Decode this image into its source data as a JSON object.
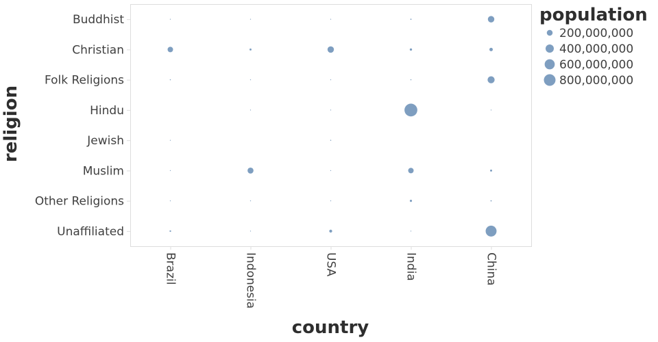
{
  "chart_data": {
    "type": "scatter",
    "mark": "bubble",
    "xlabel": "country",
    "ylabel": "religion",
    "x_categories": [
      "Brazil",
      "Indonesia",
      "USA",
      "India",
      "China"
    ],
    "y_categories": [
      "Buddhist",
      "Christian",
      "Folk Religions",
      "Hindu",
      "Jewish",
      "Muslim",
      "Other Religions",
      "Unaffiliated"
    ],
    "grid": false,
    "legend_position": "top-right",
    "size_legend": {
      "title": "population",
      "values": [
        200000000,
        400000000,
        600000000,
        800000000
      ],
      "labels": [
        "200,000,000",
        "400,000,000",
        "600,000,000",
        "800,000,000"
      ],
      "max_value": 800000000,
      "max_radius_px": 8.5
    },
    "colors": {
      "mark": "#4c78a8",
      "mark_opacity": 0.72,
      "axis_border": "#dddddd",
      "tick_label": "#3f3f3f",
      "title": "#2e2e2e"
    },
    "points": [
      {
        "x": "Brazil",
        "y": "Buddhist",
        "population": 250000
      },
      {
        "x": "Brazil",
        "y": "Christian",
        "population": 175770000
      },
      {
        "x": "Brazil",
        "y": "Folk Religions",
        "population": 5540000
      },
      {
        "x": "Brazil",
        "y": "Jewish",
        "population": 110000
      },
      {
        "x": "Brazil",
        "y": "Muslim",
        "population": 40000
      },
      {
        "x": "Brazil",
        "y": "Other Religions",
        "population": 300000
      },
      {
        "x": "Brazil",
        "y": "Unaffiliated",
        "population": 15410000
      },
      {
        "x": "Indonesia",
        "y": "Buddhist",
        "population": 1720000
      },
      {
        "x": "Indonesia",
        "y": "Christian",
        "population": 23660000
      },
      {
        "x": "Indonesia",
        "y": "Folk Religions",
        "population": 750000
      },
      {
        "x": "Indonesia",
        "y": "Hindu",
        "population": 4050000
      },
      {
        "x": "Indonesia",
        "y": "Muslim",
        "population": 209120000
      },
      {
        "x": "Indonesia",
        "y": "Other Religions",
        "population": 340000
      },
      {
        "x": "Indonesia",
        "y": "Unaffiliated",
        "population": 240000
      },
      {
        "x": "USA",
        "y": "Buddhist",
        "population": 3570000
      },
      {
        "x": "USA",
        "y": "Christian",
        "population": 243060000
      },
      {
        "x": "USA",
        "y": "Folk Religions",
        "population": 630000
      },
      {
        "x": "USA",
        "y": "Hindu",
        "population": 1790000
      },
      {
        "x": "USA",
        "y": "Jewish",
        "population": 5690000
      },
      {
        "x": "USA",
        "y": "Muslim",
        "population": 2770000
      },
      {
        "x": "USA",
        "y": "Other Religions",
        "population": 1900000
      },
      {
        "x": "USA",
        "y": "Unaffiliated",
        "population": 50980000
      },
      {
        "x": "India",
        "y": "Buddhist",
        "population": 9250000
      },
      {
        "x": "India",
        "y": "Christian",
        "population": 31130000
      },
      {
        "x": "India",
        "y": "Folk Religions",
        "population": 5840000
      },
      {
        "x": "India",
        "y": "Hindu",
        "population": 973750000
      },
      {
        "x": "India",
        "y": "Muslim",
        "population": 176190000
      },
      {
        "x": "India",
        "y": "Other Religions",
        "population": 27560000
      },
      {
        "x": "India",
        "y": "Unaffiliated",
        "population": 870000
      },
      {
        "x": "China",
        "y": "Buddhist",
        "population": 244130000
      },
      {
        "x": "China",
        "y": "Christian",
        "population": 68410000
      },
      {
        "x": "China",
        "y": "Folk Religions",
        "population": 294320000
      },
      {
        "x": "China",
        "y": "Hindu",
        "population": 20000
      },
      {
        "x": "China",
        "y": "Muslim",
        "population": 24690000
      },
      {
        "x": "China",
        "y": "Other Religions",
        "population": 9080000
      },
      {
        "x": "China",
        "y": "Unaffiliated",
        "population": 700680000
      }
    ]
  }
}
